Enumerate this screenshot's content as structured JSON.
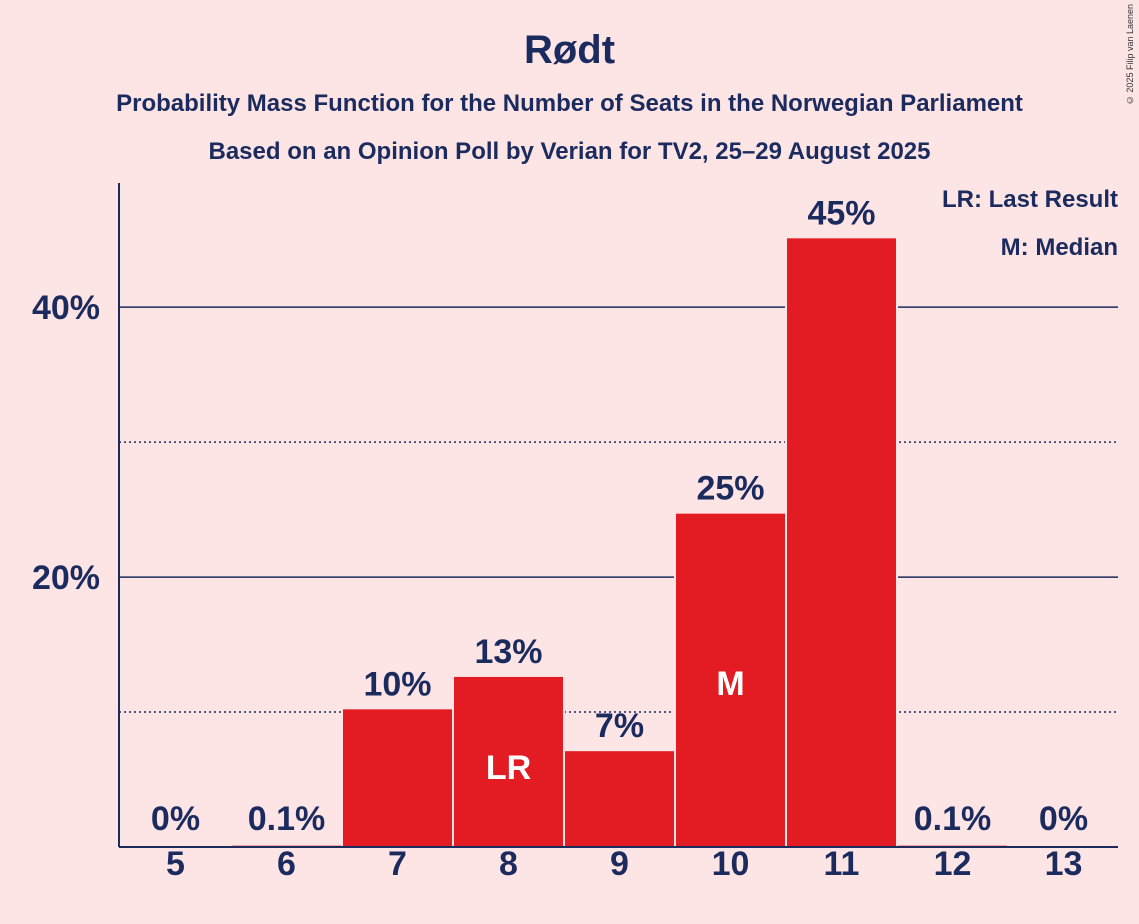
{
  "header": {
    "title": "Rødt",
    "subtitle_1": "Probability Mass Function for the Number of Seats in the Norwegian Parliament",
    "subtitle_2": "Based on an Opinion Poll by Verian for TV2, 25–29 August 2025",
    "copyright": "© 2025 Filip van Laenen"
  },
  "legend": {
    "last_result": "LR: Last Result",
    "median": "M: Median"
  },
  "colors": {
    "background": "#fde4e5",
    "bar": "#e31c23",
    "text": "#1b2b5e"
  },
  "chart_data": {
    "type": "bar",
    "categories": [
      "5",
      "6",
      "7",
      "8",
      "9",
      "10",
      "11",
      "12",
      "13"
    ],
    "values": [
      0,
      0.1,
      10.2,
      12.6,
      7.1,
      24.7,
      45.1,
      0.1,
      0
    ],
    "value_labels": [
      "0%",
      "0.1%",
      "10%",
      "13%",
      "7%",
      "25%",
      "45%",
      "0.1%",
      "0%"
    ],
    "bar_markers": [
      "",
      "",
      "",
      "LR",
      "",
      "M",
      "",
      "",
      ""
    ],
    "ylim": [
      0,
      49.2
    ],
    "yticks_major": [
      20,
      40
    ],
    "ytick_labels": [
      "20%",
      "40%"
    ],
    "yticks_minor": [
      10,
      30
    ],
    "grid": true
  }
}
